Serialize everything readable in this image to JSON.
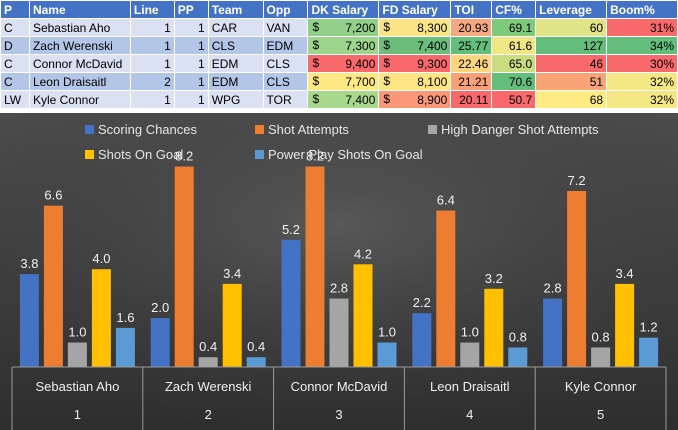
{
  "table": {
    "columns": [
      "P",
      "Name",
      "Line",
      "PP",
      "Team",
      "Opp",
      "DK Salary",
      "FD Salary",
      "TOI",
      "CF%",
      "Leverage",
      "Boom%"
    ],
    "rows": [
      {
        "pos": "C",
        "name": "Sebastian Aho",
        "line": "1",
        "pp": "1",
        "team": "CAR",
        "opp": "VAN",
        "dk_cur": "$",
        "dk": "7,200",
        "fd_cur": "$",
        "fd": "8,300",
        "toi": "20.93",
        "cf": "69.1",
        "leverage": "60",
        "boom": "31%",
        "colors": {
          "dk": "#92d08a",
          "fd": "#fbe486",
          "toi": "#f4a882",
          "cf": "#7fc97d",
          "leverage": "#e0e386",
          "boom": "#f8696b"
        }
      },
      {
        "pos": "D",
        "name": "Zach Werenski",
        "line": "1",
        "pp": "1",
        "team": "CLS",
        "opp": "EDM",
        "dk_cur": "$",
        "dk": "7,300",
        "fd_cur": "$",
        "fd": "7,400",
        "toi": "25.77",
        "cf": "61.6",
        "leverage": "127",
        "boom": "34%",
        "colors": {
          "dk": "#9ed58c",
          "fd": "#6cbd7c",
          "toi": "#63be7b",
          "cf": "#f0e684",
          "leverage": "#63be7b",
          "boom": "#63be7b"
        }
      },
      {
        "pos": "C",
        "name": "Connor McDavid",
        "line": "1",
        "pp": "1",
        "team": "EDM",
        "opp": "CLS",
        "dk_cur": "$",
        "dk": "9,400",
        "fd_cur": "$",
        "fd": "9,300",
        "toi": "22.46",
        "cf": "65.0",
        "leverage": "46",
        "boom": "30%",
        "colors": {
          "dk": "#f8696b",
          "fd": "#f8696b",
          "toi": "#fcd57f",
          "cf": "#c9dc81",
          "leverage": "#f8696b",
          "boom": "#f8696b"
        }
      },
      {
        "pos": "C",
        "name": "Leon Draisaitl",
        "line": "2",
        "pp": "1",
        "team": "EDM",
        "opp": "CLS",
        "dk_cur": "$",
        "dk": "7,700",
        "fd_cur": "$",
        "fd": "8,100",
        "toi": "21.21",
        "cf": "70.6",
        "leverage": "51",
        "boom": "32%",
        "colors": {
          "dk": "#fde983",
          "fd": "#fde583",
          "toi": "#f9a077",
          "cf": "#63be7b",
          "leverage": "#f9a477",
          "boom": "#f4e884"
        }
      },
      {
        "pos": "LW",
        "name": "Kyle Connor",
        "line": "1",
        "pp": "1",
        "team": "WPG",
        "opp": "TOR",
        "dk_cur": "$",
        "dk": "7,400",
        "fd_cur": "$",
        "fd": "8,900",
        "toi": "20.11",
        "cf": "50.7",
        "leverage": "68",
        "boom": "32%",
        "colors": {
          "dk": "#a7d88b",
          "fd": "#f99777",
          "toi": "#f8696b",
          "cf": "#f8696b",
          "leverage": "#ffeb84",
          "boom": "#f4e884"
        }
      }
    ]
  },
  "chart_data": {
    "type": "bar",
    "title": "",
    "xlabel": "",
    "ylabel": "",
    "ylim": [
      0,
      9
    ],
    "grid": false,
    "legend_position": "top",
    "categories": [
      {
        "name": "Sebastian Aho",
        "index": "1"
      },
      {
        "name": "Zach Werenski",
        "index": "2"
      },
      {
        "name": "Connor McDavid",
        "index": "3"
      },
      {
        "name": "Leon Draisaitl",
        "index": "4"
      },
      {
        "name": "Kyle Connor",
        "index": "5"
      }
    ],
    "series": [
      {
        "name": "Scoring Chances",
        "color": "#4472c4",
        "values": [
          3.8,
          2.0,
          5.2,
          2.2,
          2.8
        ]
      },
      {
        "name": "Shot Attempts",
        "color": "#ed7d31",
        "values": [
          6.6,
          8.2,
          8.2,
          6.4,
          7.2
        ]
      },
      {
        "name": "High Danger Shot Attempts",
        "color": "#a5a5a5",
        "values": [
          1.0,
          0.4,
          2.8,
          1.0,
          0.8
        ]
      },
      {
        "name": "Shots On Goal",
        "color": "#ffc000",
        "values": [
          4.0,
          3.4,
          4.2,
          3.2,
          3.4
        ]
      },
      {
        "name": "Power Play Shots On Goal",
        "color": "#5b9bd5",
        "values": [
          1.6,
          0.4,
          1.0,
          0.8,
          1.2
        ]
      }
    ]
  }
}
